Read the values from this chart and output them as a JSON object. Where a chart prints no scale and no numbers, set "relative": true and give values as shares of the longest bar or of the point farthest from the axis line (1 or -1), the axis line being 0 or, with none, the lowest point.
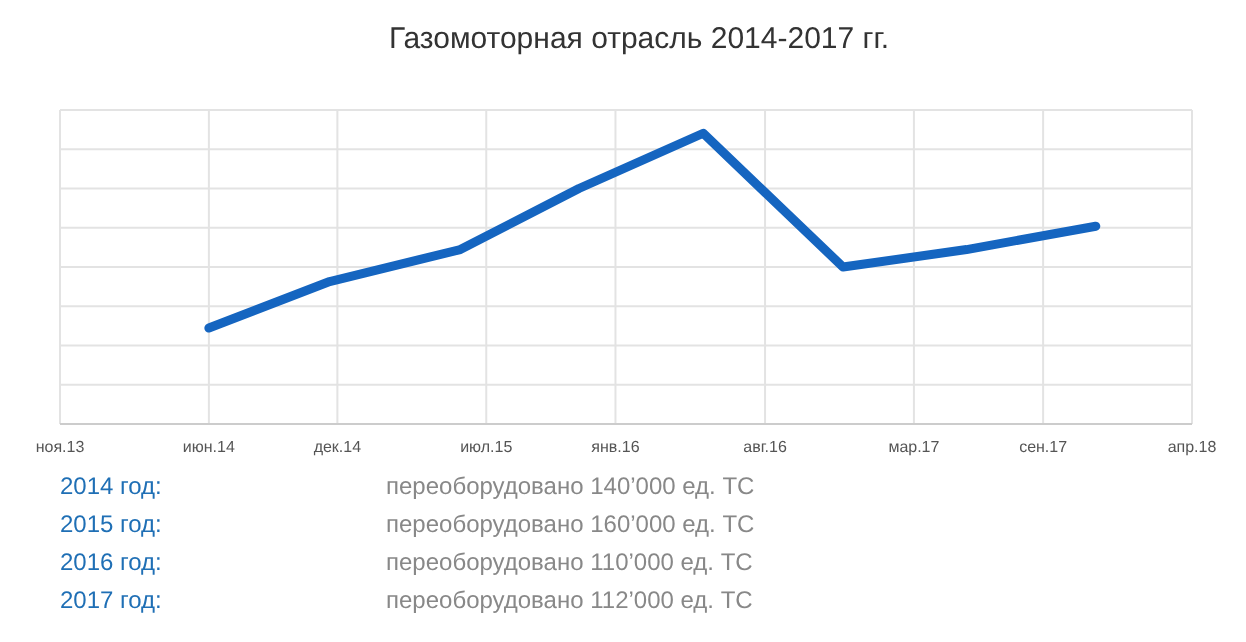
{
  "chart_data": {
    "type": "line",
    "title": "Газомоторная отрасль 2014-2017 гг.",
    "relative": true,
    "grid": true,
    "marker": "none",
    "line_style": "solid",
    "x": [
      "2014-06-01",
      "2014-11-20",
      "2015-05-25",
      "2015-11-10",
      "2016-05-05",
      "2016-11-20",
      "2017-05-15",
      "2017-11-15"
    ],
    "xlim": [
      "2013-11-01",
      "2018-04-01"
    ],
    "xticks": [
      {
        "value": "2013-11-01",
        "label": "ноя.13"
      },
      {
        "value": "2014-06-01",
        "label": "июн.14"
      },
      {
        "value": "2014-12-01",
        "label": "дек.14"
      },
      {
        "value": "2015-07-01",
        "label": "июл.15"
      },
      {
        "value": "2016-01-01",
        "label": "янв.16"
      },
      {
        "value": "2016-08-01",
        "label": "авг.16"
      },
      {
        "value": "2017-03-01",
        "label": "мар.17"
      },
      {
        "value": "2017-09-01",
        "label": "сен.17"
      },
      {
        "value": "2018-04-01",
        "label": "апр.18"
      }
    ],
    "series": [
      {
        "color": "#1565c0",
        "values": [
          0.33,
          0.49,
          0.6,
          0.81,
          1,
          0.54,
          0.6,
          0.68
        ]
      }
    ],
    "annotations": [
      "2014 год:",
      "переоборудовано 140’000 ед. ТС",
      "2015 год:",
      "переоборудовано 160’000 ед. ТС",
      "2016 год:",
      "переоборудовано 110’000 ед. ТС",
      "2017 год:",
      "переоборудовано 112’000 ед. ТС"
    ]
  }
}
